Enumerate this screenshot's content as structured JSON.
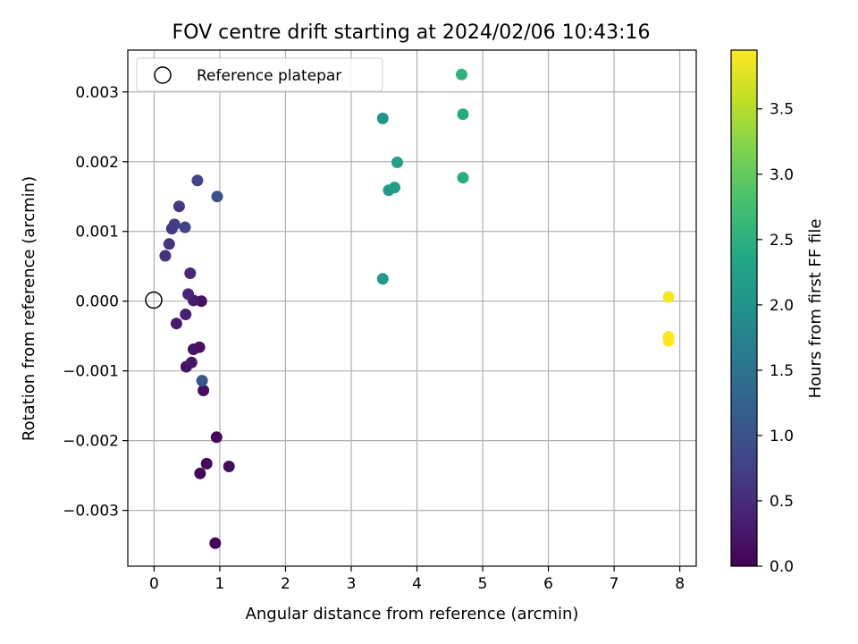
{
  "chart_data": {
    "type": "scatter",
    "title": "FOV centre drift starting at 2024/02/06 10:43:16",
    "xlabel": "Angular distance from reference (arcmin)",
    "ylabel": "Rotation from reference (arcmin)",
    "xlim": [
      -0.4,
      8.25
    ],
    "ylim": [
      -0.0038,
      0.0036
    ],
    "xticks": [
      0,
      1,
      2,
      3,
      4,
      5,
      6,
      7,
      8
    ],
    "xtick_labels": [
      "0",
      "1",
      "2",
      "3",
      "4",
      "5",
      "6",
      "7",
      "8"
    ],
    "yticks": [
      0.003,
      0.002,
      0.001,
      0.0,
      -0.001,
      -0.002,
      -0.003
    ],
    "ytick_labels": [
      "0.003",
      "0.002",
      "0.001",
      "0.000",
      "−0.001",
      "−0.002",
      "−0.003"
    ],
    "grid": true,
    "legend": {
      "position": "upper left",
      "entries": [
        "Reference platepar"
      ]
    },
    "reference_point": {
      "x": 0.0,
      "y": 0.0
    },
    "colorbar": {
      "label": "Hours from first FF file",
      "colormap": "viridis",
      "range": [
        0.0,
        3.95
      ],
      "ticks": [
        0.0,
        0.5,
        1.0,
        1.5,
        2.0,
        2.5,
        3.0,
        3.5
      ],
      "tick_labels": [
        "0.0",
        "0.5",
        "1.0",
        "1.5",
        "2.0",
        "2.5",
        "3.0",
        "3.5"
      ]
    },
    "points": [
      {
        "x": 0.93,
        "y": -0.00347,
        "hours": 0.05
      },
      {
        "x": 0.7,
        "y": -0.00247,
        "hours": 0.07
      },
      {
        "x": 0.8,
        "y": -0.00233,
        "hours": 0.1
      },
      {
        "x": 1.14,
        "y": -0.00237,
        "hours": 0.12
      },
      {
        "x": 0.95,
        "y": -0.00195,
        "hours": 0.1
      },
      {
        "x": 0.75,
        "y": -0.00128,
        "hours": 0.15
      },
      {
        "x": 0.49,
        "y": -0.00094,
        "hours": 0.2
      },
      {
        "x": 0.57,
        "y": -0.00088,
        "hours": 0.25
      },
      {
        "x": 0.6,
        "y": -0.00069,
        "hours": 0.22
      },
      {
        "x": 0.69,
        "y": -0.00066,
        "hours": 0.18
      },
      {
        "x": 0.34,
        "y": -0.00032,
        "hours": 0.3
      },
      {
        "x": 0.48,
        "y": -0.00019,
        "hours": 0.35
      },
      {
        "x": 0.72,
        "y": 0.0,
        "hours": 0.15
      },
      {
        "x": 0.6,
        "y": 1e-05,
        "hours": 0.3
      },
      {
        "x": 0.52,
        "y": 0.0001,
        "hours": 0.4
      },
      {
        "x": 0.55,
        "y": 0.0004,
        "hours": 0.45
      },
      {
        "x": 0.17,
        "y": 0.00065,
        "hours": 0.55
      },
      {
        "x": 0.23,
        "y": 0.00082,
        "hours": 0.6
      },
      {
        "x": 0.27,
        "y": 0.00104,
        "hours": 0.65
      },
      {
        "x": 0.31,
        "y": 0.0011,
        "hours": 0.7
      },
      {
        "x": 0.47,
        "y": 0.00106,
        "hours": 0.75
      },
      {
        "x": 0.38,
        "y": 0.00136,
        "hours": 0.65
      },
      {
        "x": 0.66,
        "y": 0.00173,
        "hours": 0.8
      },
      {
        "x": 0.96,
        "y": 0.0015,
        "hours": 0.95
      },
      {
        "x": 0.73,
        "y": -0.00114,
        "hours": 1.05
      },
      {
        "x": 3.48,
        "y": 0.00032,
        "hours": 2.1
      },
      {
        "x": 3.57,
        "y": 0.00159,
        "hours": 2.15
      },
      {
        "x": 3.66,
        "y": 0.00163,
        "hours": 2.2
      },
      {
        "x": 3.7,
        "y": 0.00199,
        "hours": 2.25
      },
      {
        "x": 3.48,
        "y": 0.00262,
        "hours": 2.05
      },
      {
        "x": 4.68,
        "y": 0.00325,
        "hours": 2.55
      },
      {
        "x": 4.7,
        "y": 0.00268,
        "hours": 2.4
      },
      {
        "x": 4.7,
        "y": 0.00177,
        "hours": 2.45
      },
      {
        "x": 7.83,
        "y": 6e-05,
        "hours": 3.9
      },
      {
        "x": 7.83,
        "y": -0.00051,
        "hours": 3.92
      },
      {
        "x": 7.83,
        "y": -0.00054,
        "hours": 3.93
      },
      {
        "x": 7.83,
        "y": -0.00057,
        "hours": 3.95
      }
    ]
  }
}
